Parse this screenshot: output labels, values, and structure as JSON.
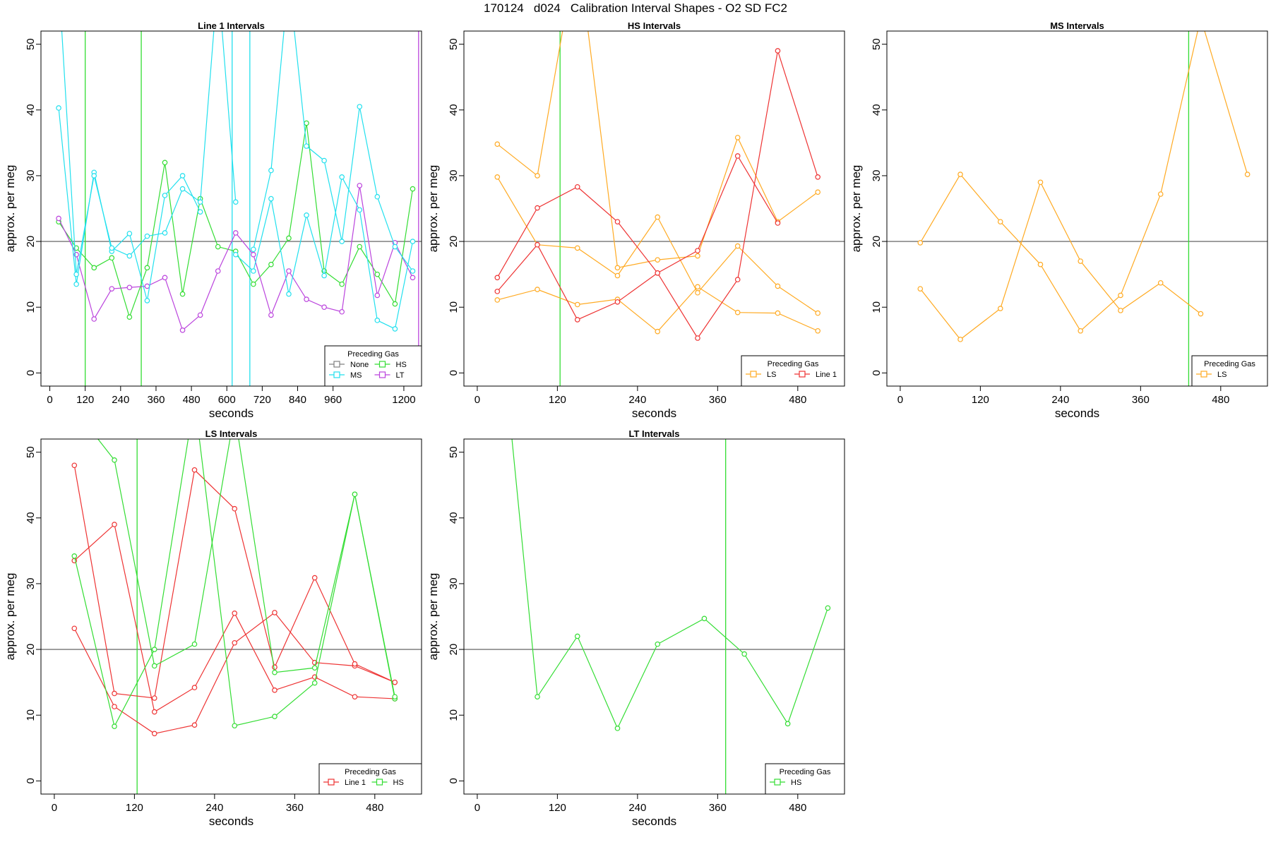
{
  "page_title": "170124   d024   Calibration Interval Shapes - O2 SD FC2",
  "colors": {
    "None": "#808080",
    "HS": "#33dd33",
    "MS": "#22e0ee",
    "LT": "#bb44dd",
    "LS": "#ffaa22",
    "Line 1": "#ee3333",
    "refline": "#555555",
    "vline": "#228822"
  },
  "chart_data": [
    {
      "type": "line",
      "title": "Line 1 Intervals",
      "xlabel": "seconds",
      "ylabel": "approx. per meg",
      "xlim": [
        -30,
        1260
      ],
      "ylim": [
        -2,
        52
      ],
      "xticks": [
        0,
        120,
        240,
        360,
        480,
        600,
        720,
        840,
        960,
        1200
      ],
      "yticks": [
        0,
        10,
        20,
        30,
        40,
        50
      ],
      "hline": 20,
      "vlines": [
        {
          "x": 120,
          "gas": "HS"
        },
        {
          "x": 310,
          "gas": "HS"
        },
        {
          "x": 618,
          "gas": "MS"
        },
        {
          "x": 678,
          "gas": "MS"
        },
        {
          "x": 1250,
          "gas": "LT"
        }
      ],
      "legend": {
        "title": "Preceding Gas",
        "position": "bottom-right",
        "entries": [
          "None",
          "HS",
          "MS",
          "LT"
        ]
      },
      "series": [
        {
          "gas": "HS",
          "x": [
            30,
            90,
            150,
            210,
            270,
            330,
            390,
            450,
            510,
            570,
            630,
            690,
            750,
            810,
            870,
            930,
            990,
            1050,
            1110,
            1170,
            1230
          ],
          "y": [
            23,
            19,
            16,
            17.5,
            8.5,
            16,
            32,
            12,
            26.5,
            19.2,
            18.5,
            13.5,
            16.5,
            20.5,
            38,
            15.5,
            13.5,
            19.2,
            15,
            10.5,
            28
          ]
        },
        {
          "gas": "LT",
          "x": [
            30,
            90,
            150,
            210,
            270,
            330,
            390,
            450,
            510,
            570,
            630,
            690,
            750,
            810,
            870,
            930,
            990,
            1050,
            1110,
            1170,
            1230
          ],
          "y": [
            23.5,
            18,
            8.2,
            12.8,
            13,
            13.2,
            14.5,
            6.5,
            8.8,
            15.5,
            21.3,
            18,
            8.8,
            15.5,
            11.2,
            10,
            9.3,
            28.5,
            11.8,
            19.8,
            14.5
          ]
        },
        {
          "gas": "MS",
          "x": [
            30,
            90,
            150,
            210,
            270,
            330,
            390,
            450,
            510
          ],
          "y": [
            40.3,
            13.5,
            30.5,
            18.5,
            21.2,
            11,
            27,
            30,
            24.5
          ]
        },
        {
          "gas": "MS",
          "x": [
            30,
            90,
            150,
            210,
            270,
            330,
            390,
            450,
            510,
            570,
            630
          ],
          "y": [
            60,
            15,
            30,
            19,
            17.8,
            20.8,
            21.3,
            28,
            26,
            60,
            26
          ]
        },
        {
          "gas": "MS",
          "x": [
            630,
            690,
            750,
            810,
            870,
            930,
            990,
            1050,
            1110,
            1170,
            1230
          ],
          "y": [
            18,
            15.5,
            26.5,
            12,
            24,
            14.8,
            29.8,
            24.8,
            8,
            6.7,
            20
          ]
        },
        {
          "gas": "MS",
          "x": [
            690,
            750,
            810,
            870,
            930,
            990,
            1050,
            1110,
            1170,
            1230
          ],
          "y": [
            18.8,
            30.8,
            60,
            34.5,
            32.3,
            20,
            40.5,
            26.8,
            19.2,
            15.5
          ]
        }
      ]
    },
    {
      "type": "line",
      "title": "HS Intervals",
      "xlabel": "seconds",
      "ylabel": "approx. per meg",
      "xlim": [
        -20,
        550
      ],
      "ylim": [
        -2,
        52
      ],
      "xticks": [
        0,
        120,
        240,
        360,
        480
      ],
      "yticks": [
        0,
        10,
        20,
        30,
        40,
        50
      ],
      "hline": 20,
      "vlines": [
        {
          "x": 124,
          "gas": "HS"
        }
      ],
      "legend": {
        "title": "Preceding Gas",
        "position": "bottom-right",
        "entries": [
          "LS",
          "Line 1"
        ]
      },
      "series": [
        {
          "gas": "LS",
          "x": [
            30,
            90,
            150,
            210,
            270,
            330,
            390,
            450,
            510
          ],
          "y": [
            34.8,
            30,
            65,
            16,
            17.2,
            17.8,
            35.8,
            23,
            27.5
          ]
        },
        {
          "gas": "LS",
          "x": [
            30,
            90,
            150,
            210,
            270,
            330,
            390,
            450,
            510
          ],
          "y": [
            29.8,
            19.5,
            19,
            14.8,
            23.7,
            12.2,
            19.3,
            13.2,
            9.1
          ]
        },
        {
          "gas": "LS",
          "x": [
            30,
            90,
            150,
            210,
            270,
            330,
            390,
            450,
            510
          ],
          "y": [
            11.1,
            12.7,
            10.4,
            11.2,
            6.3,
            13.1,
            9.2,
            9.1,
            6.4
          ]
        },
        {
          "gas": "Line 1",
          "x": [
            30,
            90,
            150,
            210,
            270,
            330,
            390,
            450,
            510
          ],
          "y": [
            14.5,
            25.1,
            28.3,
            23,
            15.2,
            5.3,
            14.2,
            49,
            29.8
          ]
        },
        {
          "gas": "Line 1",
          "x": [
            30,
            90,
            150,
            210,
            270,
            330,
            390,
            450
          ],
          "y": [
            12.4,
            19.5,
            8.1,
            10.8,
            15.2,
            18.6,
            33,
            22.8
          ]
        }
      ]
    },
    {
      "type": "line",
      "title": "MS Intervals",
      "xlabel": "seconds",
      "ylabel": "approx. per meg",
      "xlim": [
        -20,
        550
      ],
      "ylim": [
        -2,
        52
      ],
      "xticks": [
        0,
        120,
        240,
        360,
        480
      ],
      "yticks": [
        0,
        10,
        20,
        30,
        40,
        50
      ],
      "hline": 20,
      "vlines": [
        {
          "x": 432,
          "gas": "HS"
        }
      ],
      "legend": {
        "title": "Preceding Gas",
        "position": "bottom-right",
        "entries": [
          "LS"
        ]
      },
      "series": [
        {
          "gas": "LS",
          "x": [
            30,
            90,
            150,
            210,
            270,
            330,
            390,
            450,
            520
          ],
          "y": [
            19.8,
            30.2,
            23,
            16.5,
            6.4,
            11.8,
            27.2,
            54,
            30.2
          ]
        },
        {
          "gas": "LS",
          "x": [
            30,
            90,
            150,
            210,
            270,
            330,
            390,
            450
          ],
          "y": [
            12.8,
            5.1,
            9.8,
            29,
            17,
            9.5,
            13.7,
            9
          ]
        }
      ]
    },
    {
      "type": "line",
      "title": "LS Intervals",
      "xlabel": "seconds",
      "ylabel": "approx. per meg",
      "xlim": [
        -20,
        550
      ],
      "ylim": [
        -2,
        52
      ],
      "xticks": [
        0,
        120,
        240,
        360,
        480
      ],
      "yticks": [
        0,
        10,
        20,
        30,
        40,
        50
      ],
      "hline": 20,
      "vlines": [
        {
          "x": 124,
          "gas": "HS"
        }
      ],
      "legend": {
        "title": "Preceding Gas",
        "position": "bottom-right",
        "entries": [
          "Line 1",
          "HS"
        ]
      },
      "series": [
        {
          "gas": "Line 1",
          "x": [
            30,
            90,
            150,
            210,
            270,
            330
          ],
          "y": [
            48,
            13.3,
            12.6,
            47.3,
            41.4,
            17.3
          ]
        },
        {
          "gas": "Line 1",
          "x": [
            30,
            90,
            150,
            210,
            270,
            330,
            390,
            450,
            510
          ],
          "y": [
            33.5,
            39,
            10.5,
            14.2,
            25.5,
            13.8,
            15.8,
            12.8,
            12.5
          ]
        },
        {
          "gas": "Line 1",
          "x": [
            30,
            90,
            150,
            210,
            270,
            330,
            390,
            450,
            510
          ],
          "y": [
            23.2,
            11.3,
            7.2,
            8.5,
            21,
            25.6,
            18,
            17.5,
            15
          ]
        },
        {
          "gas": "Line 1",
          "x": [
            330,
            390,
            450,
            510
          ],
          "y": [
            17.3,
            30.9,
            17.8,
            15
          ]
        },
        {
          "gas": "HS",
          "x": [
            30,
            90,
            150,
            210,
            270,
            330,
            390,
            450,
            510
          ],
          "y": [
            34.2,
            8.3,
            20,
            58,
            8.4,
            9.8,
            14.9,
            43.6,
            12.5
          ]
        },
        {
          "gas": "HS",
          "x": [
            50,
            90,
            150,
            210,
            270,
            330,
            390,
            450,
            510
          ],
          "y": [
            54,
            48.8,
            17.5,
            20.8,
            56,
            16.5,
            17.2,
            43.6,
            12.8
          ]
        }
      ]
    },
    {
      "type": "line",
      "title": "LT Intervals",
      "xlabel": "seconds",
      "ylabel": "approx. per meg",
      "xlim": [
        -20,
        550
      ],
      "ylim": [
        -2,
        52
      ],
      "xticks": [
        0,
        120,
        240,
        360,
        480
      ],
      "yticks": [
        0,
        10,
        20,
        30,
        40,
        50
      ],
      "hline": 20,
      "vlines": [
        {
          "x": 372,
          "gas": "HS"
        }
      ],
      "legend": {
        "title": "Preceding Gas",
        "position": "bottom-right",
        "entries": [
          "HS"
        ]
      },
      "series": [
        {
          "gas": "HS",
          "x": [
            50,
            90,
            150,
            210,
            270,
            340,
            400,
            465,
            525
          ],
          "y": [
            54,
            12.8,
            22,
            8,
            20.8,
            24.7,
            19.3,
            8.7,
            26.3
          ]
        }
      ]
    }
  ]
}
